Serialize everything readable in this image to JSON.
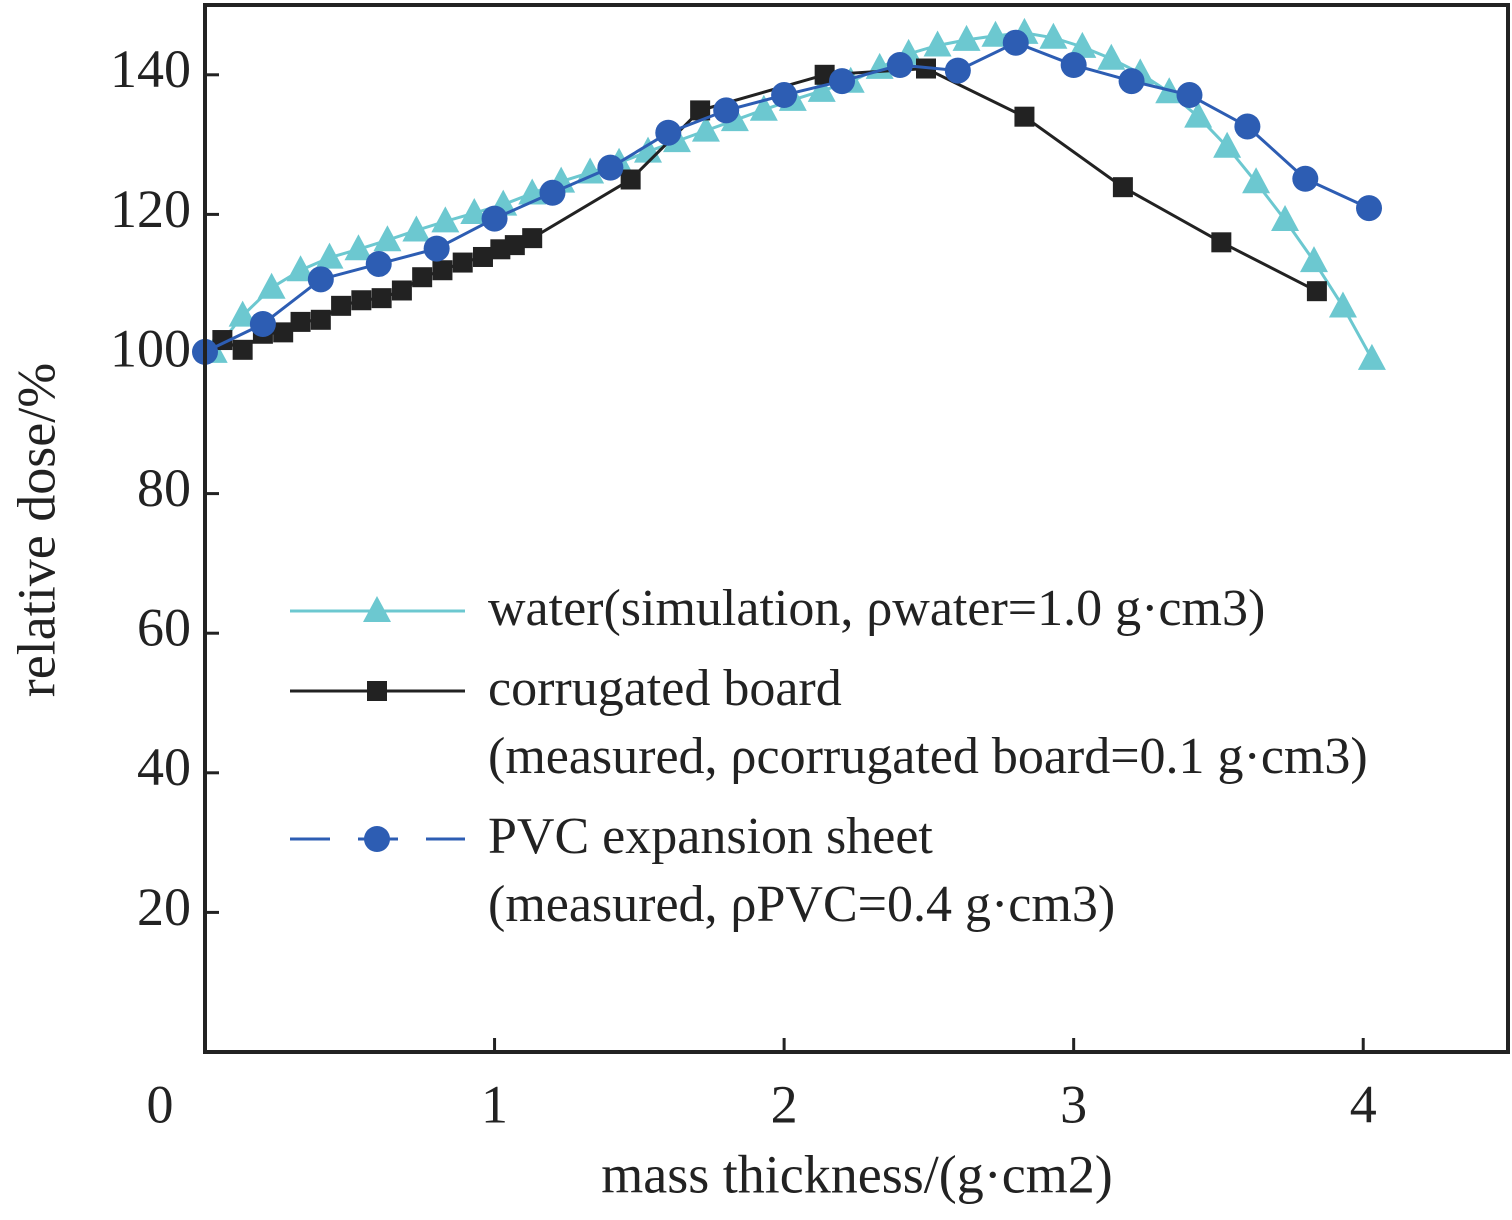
{
  "chart_data": {
    "type": "line",
    "x_label": "mass thickness/(g·cm2)",
    "y_label": "relative dose/%",
    "xlim": [
      0,
      4.5
    ],
    "ylim": [
      0,
      150
    ],
    "xticks": [
      0,
      1,
      2,
      3,
      4
    ],
    "yticks": [
      20,
      40,
      60,
      80,
      100,
      120,
      140
    ],
    "series": [
      {
        "name": "water(simulation, ρwater=1.0 g·cm3)",
        "color": "#6cc8d0",
        "marker": "triangle",
        "x": [
          0.03,
          0.13,
          0.23,
          0.33,
          0.43,
          0.53,
          0.63,
          0.73,
          0.83,
          0.93,
          1.03,
          1.13,
          1.23,
          1.33,
          1.43,
          1.53,
          1.63,
          1.73,
          1.83,
          1.93,
          2.03,
          2.13,
          2.23,
          2.33,
          2.43,
          2.53,
          2.63,
          2.73,
          2.83,
          2.93,
          3.03,
          3.13,
          3.23,
          3.33,
          3.43,
          3.53,
          3.63,
          3.73,
          3.83,
          3.93,
          4.03
        ],
        "values": [
          100.3,
          105.5,
          109.5,
          112,
          113.8,
          115,
          116.3,
          117.7,
          119,
          120.2,
          121.4,
          123,
          124.7,
          126,
          127.4,
          129,
          130.5,
          132,
          133.5,
          135,
          136.4,
          137.7,
          139,
          141,
          143,
          144.2,
          145,
          145.6,
          146,
          145.3,
          144,
          142.3,
          140.2,
          137.5,
          134,
          129.7,
          124.6,
          119.2,
          113.3,
          106.8,
          99.3
        ]
      },
      {
        "name": "corrugated board\n(measured, ρcorrugated board=0.1 g·cm3)",
        "color": "#222222",
        "marker": "square",
        "x": [
          0.06,
          0.13,
          0.2,
          0.27,
          0.33,
          0.4,
          0.47,
          0.54,
          0.61,
          0.68,
          0.75,
          0.82,
          0.89,
          0.96,
          1.02,
          1.07,
          1.13,
          1.47,
          1.71,
          2.14,
          2.49,
          2.83,
          3.17,
          3.51,
          3.84
        ],
        "values": [
          102,
          100.6,
          102.9,
          103.1,
          104.6,
          104.9,
          106.9,
          107.7,
          108,
          109.1,
          111,
          112,
          113.1,
          113.9,
          115,
          115.6,
          116.6,
          125,
          134.9,
          140,
          140.9,
          134,
          123.9,
          116,
          109
        ]
      },
      {
        "name": "PVC expansion sheet\n(measured, ρPVC=0.4 g·cm3)",
        "color": "#2d5db3",
        "marker": "circle",
        "x": [
          0,
          0.2,
          0.4,
          0.6,
          0.8,
          1.0,
          1.2,
          1.4,
          1.6,
          1.8,
          2.0,
          2.2,
          2.4,
          2.6,
          2.8,
          3.0,
          3.2,
          3.4,
          3.6,
          3.8,
          4.02
        ],
        "values": [
          100.3,
          104.3,
          110.7,
          112.9,
          115.1,
          119.4,
          123.1,
          126.7,
          131.7,
          134.9,
          137.1,
          139.1,
          141.4,
          140.6,
          144.6,
          141.4,
          139.1,
          137.1,
          132.6,
          125.1,
          120.9
        ]
      }
    ]
  }
}
